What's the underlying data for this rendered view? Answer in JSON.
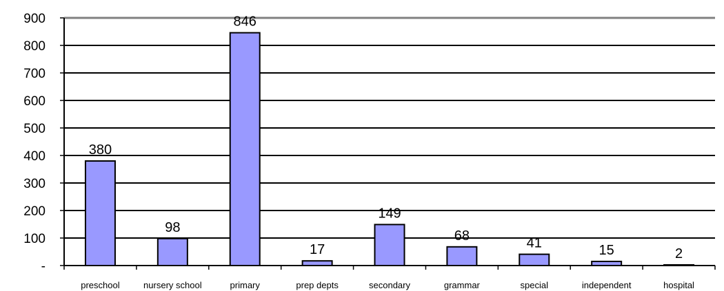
{
  "chart_data": {
    "type": "bar",
    "title": "",
    "xlabel": "",
    "ylabel": "",
    "categories": [
      "preschool",
      "nursery school",
      "primary",
      "prep depts",
      "secondary",
      "grammar",
      "special",
      "independent",
      "hospital"
    ],
    "values": [
      380,
      98,
      846,
      17,
      149,
      68,
      41,
      15,
      2
    ],
    "data_labels": [
      "380",
      "98",
      "846",
      "17",
      "149",
      "68",
      "41",
      "15",
      "2"
    ],
    "ylim": [
      0,
      900
    ],
    "yticks": [
      0,
      100,
      200,
      300,
      400,
      500,
      600,
      700,
      800,
      900
    ],
    "ytick_labels": [
      "-",
      "100",
      "200",
      "300",
      "400",
      "500",
      "600",
      "700",
      "800",
      "900"
    ],
    "grid": true,
    "legend": "none",
    "colors": {
      "bar_fill": "#9999ff",
      "bar_stroke": "#000000",
      "grid": "#000000",
      "top_border": "#808080"
    }
  }
}
